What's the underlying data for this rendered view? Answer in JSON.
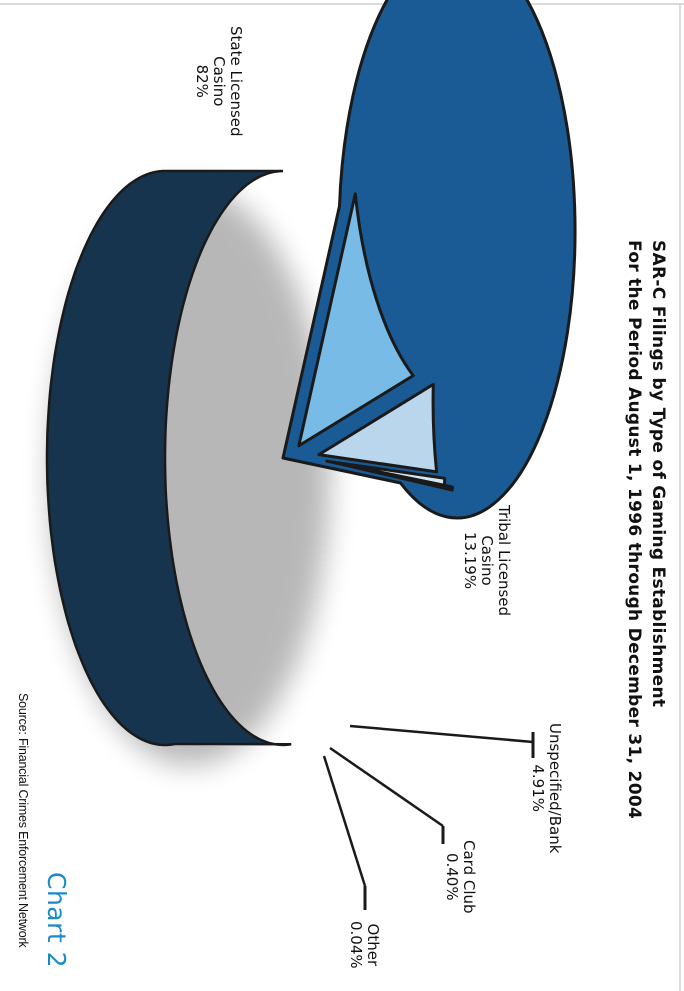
{
  "chart_data": {
    "type": "pie",
    "title": "SAR-C Filings by Type of Gaming Establishment",
    "subtitle": "For the Period August 1, 1996 through December 31, 2004",
    "slices": [
      {
        "name": "State Licensed Casino",
        "line1": "State Licensed",
        "line2": "Casino",
        "pct_label": "82%",
        "value": 82.0,
        "color": "#1a5a95"
      },
      {
        "name": "Tribal Licensed Casino",
        "line1": "Tribal Licensed",
        "line2": "Casino",
        "pct_label": "13.19%",
        "value": 13.19,
        "color": "#78bbe6"
      },
      {
        "name": "Unspecified/Bank",
        "line1": "Unspecified/Bank",
        "pct_label": "4.91%",
        "value": 4.91,
        "color": "#b9d6ec"
      },
      {
        "name": "Card Club",
        "line1": "Card Club",
        "pct_label": "0.40%",
        "value": 0.4,
        "color": "#d6e6f3"
      },
      {
        "name": "Other",
        "line1": "Other",
        "pct_label": "0.04%",
        "value": 0.04,
        "color": "#e8f0f8"
      }
    ]
  },
  "source": "Source: Financial Crimes Enforcement Network",
  "chart_number": "Chart 2",
  "colors": {
    "side": "#17344f",
    "outline": "#1a1a1a",
    "accent": "#1a8ac9"
  }
}
